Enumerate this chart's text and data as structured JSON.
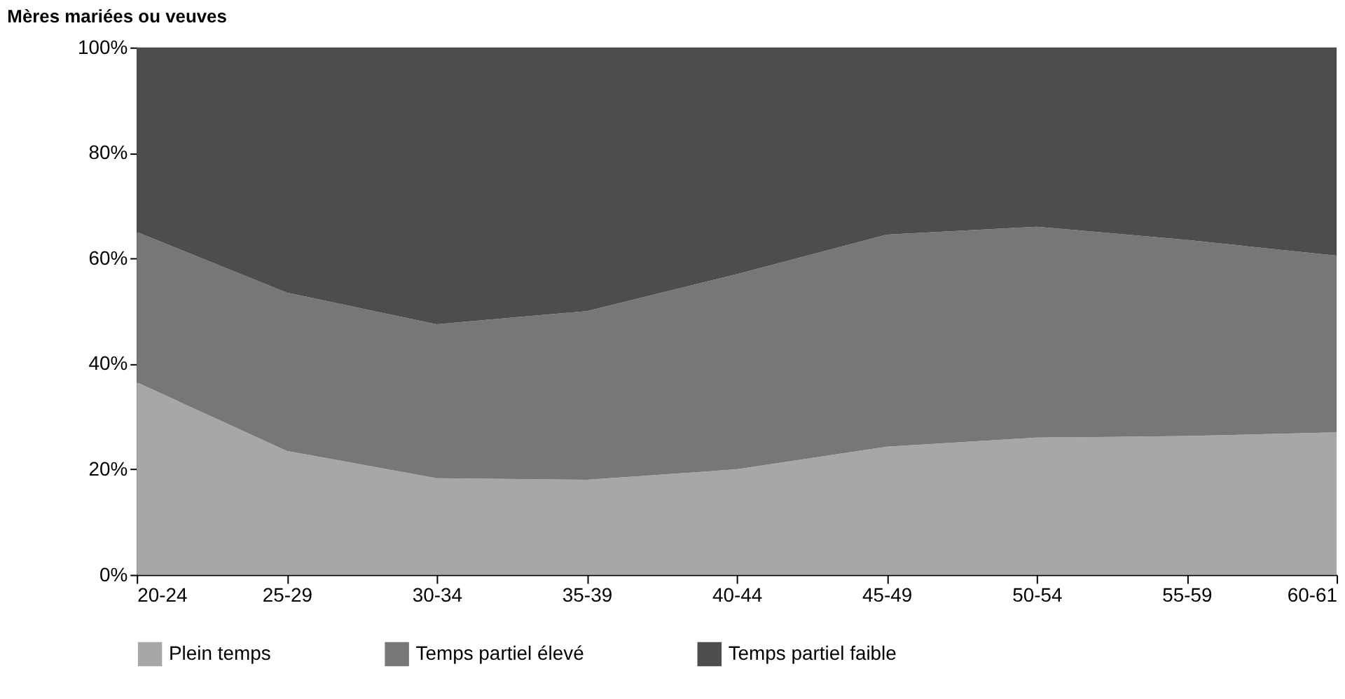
{
  "chart_data": {
    "type": "area",
    "title": "Mères mariées ou veuves",
    "categories": [
      "20-24",
      "25-29",
      "30-34",
      "35-39",
      "40-44",
      "45-49",
      "50-54",
      "55-59",
      "60-61"
    ],
    "stacked": true,
    "ylim": [
      0,
      100
    ],
    "yticks": [
      {
        "value": 0,
        "label": "0%"
      },
      {
        "value": 20,
        "label": "20%"
      },
      {
        "value": 40,
        "label": "40%"
      },
      {
        "value": 60,
        "label": "60%"
      },
      {
        "value": 80,
        "label": "80%"
      },
      {
        "value": 100,
        "label": "100%"
      }
    ],
    "series": [
      {
        "name": "Plein temps",
        "color": "#a7a7aa",
        "values": [
          36.5,
          23.5,
          18.3,
          18,
          20,
          24.3,
          26,
          26.3,
          27
        ]
      },
      {
        "name": "Temps partiel élevé",
        "color": "#77777a",
        "values": [
          28.5,
          30,
          29.2,
          32,
          37,
          40.2,
          40,
          37.2,
          33.5
        ]
      },
      {
        "name": "Temps partiel faible",
        "color": "#4d4d4f",
        "values": [
          35,
          46.5,
          52.5,
          50,
          43,
          35.5,
          34,
          36.5,
          39.5
        ]
      }
    ],
    "grid": false,
    "legend": "bottom"
  }
}
